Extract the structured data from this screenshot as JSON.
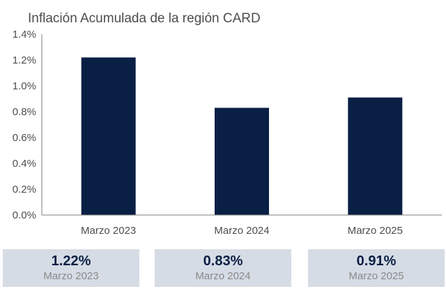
{
  "chart_data": {
    "type": "bar",
    "title": "Inflación Acumulada de la región CARD",
    "categories": [
      "Marzo 2023",
      "Marzo 2024",
      "Marzo 2025"
    ],
    "values": [
      1.22,
      0.83,
      0.91
    ],
    "ylim": [
      0,
      1.4
    ],
    "yticks": [
      "0.0%",
      "0.2%",
      "0.4%",
      "0.6%",
      "0.8%",
      "1.0%",
      "1.2%",
      "1.4%"
    ],
    "grid": false,
    "bar_color": "#0a1f44"
  },
  "summary": [
    {
      "value": "1.22%",
      "label": "Marzo 2023"
    },
    {
      "value": "0.83%",
      "label": "Marzo 2024"
    },
    {
      "value": "0.91%",
      "label": "Marzo 2025"
    }
  ],
  "colors": {
    "bar": "#0a1f44",
    "box_background": "#d6dce5",
    "label_gray": "#8a8a8a"
  }
}
